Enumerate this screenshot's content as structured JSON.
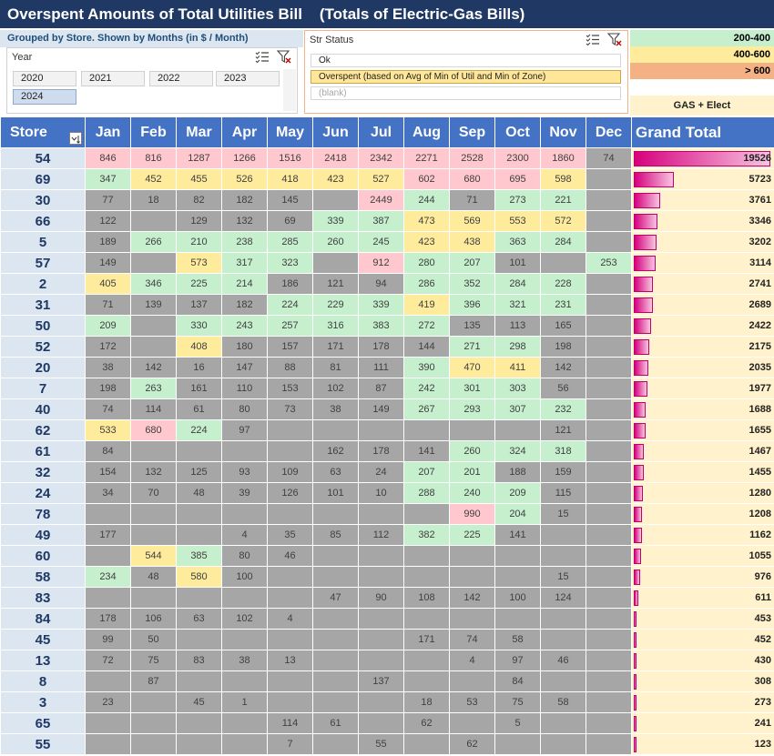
{
  "title": "Overspent Amounts of Total Utilities Bill    (Totals of Electric-Gas Bills)",
  "subtitle": "Grouped by Store. Shown by Months  (in $ / Month)",
  "year_slicer": {
    "header": "Year",
    "items": [
      {
        "label": "2020",
        "selected": false
      },
      {
        "label": "2021",
        "selected": false
      },
      {
        "label": "2022",
        "selected": false
      },
      {
        "label": "2023",
        "selected": false
      },
      {
        "label": "2024",
        "selected": true
      }
    ]
  },
  "status_slicer": {
    "header": "Str Status",
    "items": [
      {
        "label": "Ok",
        "selected": false
      },
      {
        "label": "Overspent (based on Avg of Min of Util and Min of Zone)",
        "selected": true
      },
      {
        "label": "(blank)",
        "selected": false
      }
    ]
  },
  "legend": {
    "items": [
      {
        "label": "200-400",
        "color": "#c6efce"
      },
      {
        "label": "400-600",
        "color": "#ffeb9c"
      },
      {
        "label": "> 600",
        "color": "#f4b183"
      }
    ],
    "gas_label": "GAS + Elect"
  },
  "colors": {
    "header": "#4472c4",
    "title_bg": "#1f3864",
    "green": "#c6efce",
    "yellow": "#ffeb9c",
    "pink": "#ffc7ce",
    "grey": "#a6a6a6",
    "databar": "#d6007e"
  },
  "pivot": {
    "store_header": "Store",
    "months": [
      "Jan",
      "Feb",
      "Mar",
      "Apr",
      "May",
      "Jun",
      "Jul",
      "Aug",
      "Sep",
      "Oct",
      "Nov",
      "Dec"
    ],
    "grand_total_header": "Grand Total",
    "rows": [
      {
        "store": "54",
        "values": [
          846,
          816,
          1287,
          1266,
          1516,
          2418,
          2342,
          2271,
          2528,
          2300,
          1860,
          74
        ],
        "colors": [
          "p",
          "p",
          "p",
          "p",
          "p",
          "p",
          "p",
          "p",
          "p",
          "p",
          "p",
          "e"
        ],
        "total": 19526
      },
      {
        "store": "69",
        "values": [
          347,
          452,
          455,
          526,
          418,
          423,
          527,
          602,
          680,
          695,
          598,
          null
        ],
        "colors": [
          "g",
          "y",
          "y",
          "y",
          "y",
          "y",
          "y",
          "p",
          "p",
          "p",
          "y",
          "e"
        ],
        "total": 5723
      },
      {
        "store": "30",
        "values": [
          77,
          18,
          82,
          182,
          145,
          null,
          2449,
          244,
          71,
          273,
          221,
          null
        ],
        "colors": [
          "e",
          "e",
          "e",
          "e",
          "e",
          "e",
          "p",
          "g",
          "e",
          "g",
          "g",
          "e"
        ],
        "total": 3761
      },
      {
        "store": "66",
        "values": [
          122,
          null,
          129,
          132,
          69,
          339,
          387,
          473,
          569,
          553,
          572,
          null
        ],
        "colors": [
          "e",
          "e",
          "e",
          "e",
          "e",
          "g",
          "g",
          "y",
          "y",
          "y",
          "y",
          "e"
        ],
        "total": 3346
      },
      {
        "store": "5",
        "values": [
          189,
          266,
          210,
          238,
          285,
          260,
          245,
          423,
          438,
          363,
          284,
          null
        ],
        "colors": [
          "e",
          "g",
          "g",
          "g",
          "g",
          "g",
          "g",
          "y",
          "y",
          "g",
          "g",
          "e"
        ],
        "total": 3202
      },
      {
        "store": "57",
        "values": [
          149,
          null,
          573,
          317,
          323,
          null,
          912,
          280,
          207,
          101,
          null,
          253
        ],
        "colors": [
          "e",
          "e",
          "y",
          "g",
          "g",
          "e",
          "p",
          "g",
          "g",
          "e",
          "e",
          "g"
        ],
        "total": 3114
      },
      {
        "store": "2",
        "values": [
          405,
          346,
          225,
          214,
          186,
          121,
          94,
          286,
          352,
          284,
          228,
          null
        ],
        "colors": [
          "y",
          "g",
          "g",
          "g",
          "e",
          "e",
          "e",
          "g",
          "g",
          "g",
          "g",
          "e"
        ],
        "total": 2741
      },
      {
        "store": "31",
        "values": [
          71,
          139,
          137,
          182,
          224,
          229,
          339,
          419,
          396,
          321,
          231,
          null
        ],
        "colors": [
          "e",
          "e",
          "e",
          "e",
          "g",
          "g",
          "g",
          "y",
          "g",
          "g",
          "g",
          "e"
        ],
        "total": 2689
      },
      {
        "store": "50",
        "values": [
          209,
          null,
          330,
          243,
          257,
          316,
          383,
          272,
          135,
          113,
          165,
          null
        ],
        "colors": [
          "g",
          "e",
          "g",
          "g",
          "g",
          "g",
          "g",
          "g",
          "e",
          "e",
          "e",
          "e"
        ],
        "total": 2422
      },
      {
        "store": "52",
        "values": [
          172,
          null,
          408,
          180,
          157,
          171,
          178,
          144,
          271,
          298,
          198,
          null
        ],
        "colors": [
          "e",
          "e",
          "y",
          "e",
          "e",
          "e",
          "e",
          "e",
          "g",
          "g",
          "e",
          "e"
        ],
        "total": 2175
      },
      {
        "store": "20",
        "values": [
          38,
          142,
          16,
          147,
          88,
          81,
          111,
          390,
          470,
          411,
          142,
          null
        ],
        "colors": [
          "e",
          "e",
          "e",
          "e",
          "e",
          "e",
          "e",
          "g",
          "y",
          "y",
          "e",
          "e"
        ],
        "total": 2035
      },
      {
        "store": "7",
        "values": [
          198,
          263,
          161,
          110,
          153,
          102,
          87,
          242,
          301,
          303,
          56,
          null
        ],
        "colors": [
          "e",
          "g",
          "e",
          "e",
          "e",
          "e",
          "e",
          "g",
          "g",
          "g",
          "e",
          "e"
        ],
        "total": 1977
      },
      {
        "store": "40",
        "values": [
          74,
          114,
          61,
          80,
          73,
          38,
          149,
          267,
          293,
          307,
          232,
          null
        ],
        "colors": [
          "e",
          "e",
          "e",
          "e",
          "e",
          "e",
          "e",
          "g",
          "g",
          "g",
          "g",
          "e"
        ],
        "total": 1688
      },
      {
        "store": "62",
        "values": [
          533,
          680,
          224,
          97,
          null,
          null,
          null,
          null,
          null,
          null,
          121,
          null
        ],
        "colors": [
          "y",
          "p",
          "g",
          "e",
          "e",
          "e",
          "e",
          "e",
          "e",
          "e",
          "e",
          "e"
        ],
        "total": 1655
      },
      {
        "store": "61",
        "values": [
          84,
          null,
          null,
          null,
          null,
          162,
          178,
          141,
          260,
          324,
          318,
          null
        ],
        "colors": [
          "e",
          "e",
          "e",
          "e",
          "e",
          "e",
          "e",
          "e",
          "g",
          "g",
          "g",
          "e"
        ],
        "total": 1467
      },
      {
        "store": "32",
        "values": [
          154,
          132,
          125,
          93,
          109,
          63,
          24,
          207,
          201,
          188,
          159,
          null
        ],
        "colors": [
          "e",
          "e",
          "e",
          "e",
          "e",
          "e",
          "e",
          "g",
          "g",
          "e",
          "e",
          "e"
        ],
        "total": 1455
      },
      {
        "store": "24",
        "values": [
          34,
          70,
          48,
          39,
          126,
          101,
          10,
          288,
          240,
          209,
          115,
          null
        ],
        "colors": [
          "e",
          "e",
          "e",
          "e",
          "e",
          "e",
          "e",
          "g",
          "g",
          "g",
          "e",
          "e"
        ],
        "total": 1280
      },
      {
        "store": "78",
        "values": [
          null,
          null,
          null,
          null,
          null,
          null,
          null,
          null,
          990,
          204,
          15,
          null
        ],
        "colors": [
          "e",
          "e",
          "e",
          "e",
          "e",
          "e",
          "e",
          "e",
          "p",
          "g",
          "e",
          "e"
        ],
        "total": 1208
      },
      {
        "store": "49",
        "values": [
          177,
          null,
          null,
          4,
          35,
          85,
          112,
          382,
          225,
          141,
          null,
          null
        ],
        "colors": [
          "e",
          "e",
          "e",
          "e",
          "e",
          "e",
          "e",
          "g",
          "g",
          "e",
          "e",
          "e"
        ],
        "total": 1162
      },
      {
        "store": "60",
        "values": [
          null,
          544,
          385,
          80,
          46,
          null,
          null,
          null,
          null,
          null,
          null,
          null
        ],
        "colors": [
          "e",
          "y",
          "g",
          "e",
          "e",
          "e",
          "e",
          "e",
          "e",
          "e",
          "e",
          "e"
        ],
        "total": 1055
      },
      {
        "store": "58",
        "values": [
          234,
          48,
          580,
          100,
          null,
          null,
          null,
          null,
          null,
          null,
          15,
          null
        ],
        "colors": [
          "g",
          "e",
          "y",
          "e",
          "e",
          "e",
          "e",
          "e",
          "e",
          "e",
          "e",
          "e"
        ],
        "total": 976
      },
      {
        "store": "83",
        "values": [
          null,
          null,
          null,
          null,
          null,
          47,
          90,
          108,
          142,
          100,
          124,
          null
        ],
        "colors": [
          "e",
          "e",
          "e",
          "e",
          "e",
          "e",
          "e",
          "e",
          "e",
          "e",
          "e",
          "e"
        ],
        "total": 611
      },
      {
        "store": "84",
        "values": [
          178,
          106,
          63,
          102,
          4,
          null,
          null,
          null,
          null,
          null,
          null,
          null
        ],
        "colors": [
          "e",
          "e",
          "e",
          "e",
          "e",
          "e",
          "e",
          "e",
          "e",
          "e",
          "e",
          "e"
        ],
        "total": 453
      },
      {
        "store": "45",
        "values": [
          99,
          50,
          null,
          null,
          null,
          null,
          null,
          171,
          74,
          58,
          null,
          null
        ],
        "colors": [
          "e",
          "e",
          "e",
          "e",
          "e",
          "e",
          "e",
          "e",
          "e",
          "e",
          "e",
          "e"
        ],
        "total": 452
      },
      {
        "store": "13",
        "values": [
          72,
          75,
          83,
          38,
          13,
          null,
          null,
          null,
          4,
          97,
          46,
          null
        ],
        "colors": [
          "e",
          "e",
          "e",
          "e",
          "e",
          "e",
          "e",
          "e",
          "e",
          "e",
          "e",
          "e"
        ],
        "total": 430
      },
      {
        "store": "8",
        "values": [
          null,
          87,
          null,
          null,
          null,
          null,
          137,
          null,
          null,
          84,
          null,
          null
        ],
        "colors": [
          "e",
          "e",
          "e",
          "e",
          "e",
          "e",
          "e",
          "e",
          "e",
          "e",
          "e",
          "e"
        ],
        "total": 308
      },
      {
        "store": "3",
        "values": [
          23,
          null,
          45,
          1,
          null,
          null,
          null,
          18,
          53,
          75,
          58,
          null
        ],
        "colors": [
          "e",
          "e",
          "e",
          "e",
          "e",
          "e",
          "e",
          "e",
          "e",
          "e",
          "e",
          "e"
        ],
        "total": 273
      },
      {
        "store": "65",
        "values": [
          null,
          null,
          null,
          null,
          114,
          61,
          null,
          62,
          null,
          5,
          null,
          null
        ],
        "colors": [
          "e",
          "e",
          "e",
          "e",
          "e",
          "e",
          "e",
          "e",
          "e",
          "e",
          "e",
          "e"
        ],
        "total": 241
      },
      {
        "store": "55",
        "values": [
          null,
          null,
          null,
          null,
          7,
          null,
          55,
          null,
          62,
          null,
          null,
          null
        ],
        "colors": [
          "e",
          "e",
          "e",
          "e",
          "e",
          "e",
          "e",
          "e",
          "e",
          "e",
          "e",
          "e"
        ],
        "total": 123
      }
    ]
  }
}
